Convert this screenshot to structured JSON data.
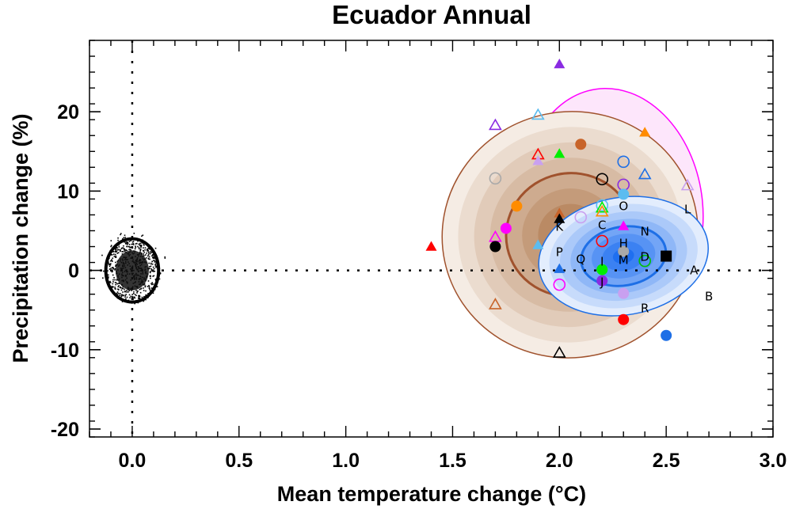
{
  "chart_data": {
    "type": "scatter",
    "title": "Ecuador Annual",
    "xlabel": "Mean temperature change (°C)",
    "ylabel": "Precipitation change (%)",
    "xlim": [
      -0.2,
      3.0
    ],
    "ylim": [
      -21,
      29
    ],
    "x_ticks": [
      {
        "value": 0.0,
        "label": "0.0"
      },
      {
        "value": 0.5,
        "label": "0.5"
      },
      {
        "value": 1.0,
        "label": "1.0"
      },
      {
        "value": 1.5,
        "label": "1.5"
      },
      {
        "value": 2.0,
        "label": "2.0"
      },
      {
        "value": 2.5,
        "label": "2.5"
      },
      {
        "value": 3.0,
        "label": "3.0"
      }
    ],
    "y_ticks": [
      {
        "value": -20,
        "label": "-20"
      },
      {
        "value": -10,
        "label": "-10"
      },
      {
        "value": 0,
        "label": "0"
      },
      {
        "value": 10,
        "label": "10"
      },
      {
        "value": 20,
        "label": "20"
      }
    ],
    "reference_lines": {
      "x": 0,
      "y": 0,
      "style": "dotted"
    },
    "natural_variability_cloud": {
      "center": [
        0.0,
        0.0
      ],
      "x_radius": 0.13,
      "y_radius": 4.2
    },
    "distributions": [
      {
        "name": "brown-distribution",
        "center": [
          2.05,
          4.5
        ],
        "x_radius": 0.6,
        "y_radius": 15.5,
        "color": "#a0522d",
        "fill_light": "#f5ece4",
        "fill_dark": "#b07a4f"
      },
      {
        "name": "magenta-distribution",
        "center": [
          2.25,
          8.0
        ],
        "x_radius": 0.42,
        "y_radius": 15.0,
        "color": "#ff00ff",
        "fill_light": "#fde6fb",
        "fill_dark": "#f8b8f2"
      },
      {
        "name": "blue-distribution",
        "center": [
          2.3,
          1.8
        ],
        "x_radius": 0.4,
        "y_radius": 7.4,
        "color": "#1e6fe6",
        "fill_light": "#e3edfd",
        "fill_dark": "#1f6ff0"
      }
    ],
    "points": [
      {
        "x": 1.4,
        "y": 3.0,
        "marker": "triangle",
        "filled": true,
        "color": "#ff0000"
      },
      {
        "x": 2.0,
        "y": 26.0,
        "marker": "triangle",
        "filled": true,
        "color": "#8a2be2"
      },
      {
        "x": 2.4,
        "y": 17.4,
        "marker": "triangle",
        "filled": true,
        "color": "#ff8c00"
      },
      {
        "x": 1.7,
        "y": 18.3,
        "marker": "triangle",
        "filled": false,
        "color": "#8a2be2"
      },
      {
        "x": 1.9,
        "y": 19.6,
        "marker": "triangle",
        "filled": false,
        "color": "#5bbcf0"
      },
      {
        "x": 1.9,
        "y": 14.6,
        "marker": "triangle",
        "filled": false,
        "color": "#ff0000"
      },
      {
        "x": 1.9,
        "y": 13.8,
        "marker": "triangle",
        "filled": true,
        "color": "#c9a0f0"
      },
      {
        "x": 2.0,
        "y": 14.7,
        "marker": "triangle",
        "filled": true,
        "color": "#00ee00"
      },
      {
        "x": 2.1,
        "y": 15.9,
        "marker": "circle",
        "filled": true,
        "color": "#c8642a"
      },
      {
        "x": 1.7,
        "y": 11.6,
        "marker": "circle",
        "filled": false,
        "color": "#a9a9a9"
      },
      {
        "x": 2.2,
        "y": 11.5,
        "marker": "circle",
        "filled": false,
        "color": "#000000"
      },
      {
        "x": 2.3,
        "y": 13.7,
        "marker": "circle",
        "filled": false,
        "color": "#1e6fe6"
      },
      {
        "x": 2.4,
        "y": 12.1,
        "marker": "triangle",
        "filled": false,
        "color": "#1e6fe6"
      },
      {
        "x": 2.3,
        "y": 10.8,
        "marker": "circle",
        "filled": false,
        "color": "#8a2be2"
      },
      {
        "x": 2.3,
        "y": 9.6,
        "marker": "circle",
        "filled": true,
        "color": "#5bbcf0"
      },
      {
        "x": 2.6,
        "y": 10.7,
        "marker": "triangle",
        "filled": false,
        "color": "#c9a0f0"
      },
      {
        "x": 1.8,
        "y": 8.1,
        "marker": "circle",
        "filled": true,
        "color": "#ff8c00"
      },
      {
        "x": 2.0,
        "y": 7.2,
        "marker": "triangle",
        "filled": true,
        "color": "#c8642a"
      },
      {
        "x": 2.0,
        "y": 6.5,
        "marker": "triangle",
        "filled": true,
        "color": "#000000"
      },
      {
        "x": 2.1,
        "y": 6.7,
        "marker": "circle",
        "filled": false,
        "color": "#c9a0f0"
      },
      {
        "x": 2.2,
        "y": 8.2,
        "marker": "circle",
        "filled": false,
        "color": "#5bbcf0"
      },
      {
        "x": 2.2,
        "y": 7.9,
        "marker": "triangle",
        "filled": false,
        "color": "#00ee00"
      },
      {
        "x": 2.2,
        "y": 7.4,
        "marker": "triangle",
        "filled": false,
        "color": "#ff8c00"
      },
      {
        "x": 1.75,
        "y": 5.3,
        "marker": "circle",
        "filled": true,
        "color": "#ff00ff"
      },
      {
        "x": 1.7,
        "y": 4.2,
        "marker": "triangle",
        "filled": false,
        "color": "#ff00ff"
      },
      {
        "x": 1.7,
        "y": 3.0,
        "marker": "circle",
        "filled": true,
        "color": "#000000"
      },
      {
        "x": 1.9,
        "y": 3.2,
        "marker": "triangle",
        "filled": true,
        "color": "#5bbcf0"
      },
      {
        "x": 2.3,
        "y": 5.6,
        "marker": "triangle",
        "filled": true,
        "color": "#ff00ff"
      },
      {
        "x": 2.2,
        "y": 3.7,
        "marker": "circle",
        "filled": false,
        "color": "#ff0000"
      },
      {
        "x": 2.3,
        "y": 2.4,
        "marker": "circle",
        "filled": true,
        "color": "#a9a9a9"
      },
      {
        "x": 2.5,
        "y": 1.8,
        "marker": "square",
        "filled": true,
        "color": "#000000"
      },
      {
        "x": 2.4,
        "y": 1.2,
        "marker": "circle",
        "filled": false,
        "color": "#00c000"
      },
      {
        "x": 2.0,
        "y": 0.2,
        "marker": "triangle",
        "filled": true,
        "color": "#1e6fe6"
      },
      {
        "x": 2.2,
        "y": 0.1,
        "marker": "circle",
        "filled": true,
        "color": "#00ee00"
      },
      {
        "x": 2.2,
        "y": -1.3,
        "marker": "circle",
        "filled": true,
        "color": "#8a2be2"
      },
      {
        "x": 2.0,
        "y": -1.8,
        "marker": "circle",
        "filled": false,
        "color": "#ff00ff"
      },
      {
        "x": 2.3,
        "y": -2.9,
        "marker": "circle",
        "filled": true,
        "color": "#c9a0f0"
      },
      {
        "x": 1.7,
        "y": -4.3,
        "marker": "triangle",
        "filled": false,
        "color": "#c8642a"
      },
      {
        "x": 2.3,
        "y": -6.2,
        "marker": "circle",
        "filled": true,
        "color": "#ff0000"
      },
      {
        "x": 2.5,
        "y": -8.2,
        "marker": "circle",
        "filled": true,
        "color": "#1e6fe6"
      },
      {
        "x": 2.0,
        "y": -10.4,
        "marker": "triangle",
        "filled": false,
        "color": "#000000"
      }
    ],
    "letter_labels": [
      {
        "text": "K",
        "x": 2.0,
        "y": 5.0
      },
      {
        "text": "P",
        "x": 2.0,
        "y": 1.8
      },
      {
        "text": "Q",
        "x": 2.1,
        "y": 0.9
      },
      {
        "text": "C",
        "x": 2.2,
        "y": 5.2
      },
      {
        "text": "O",
        "x": 2.3,
        "y": 7.6
      },
      {
        "text": "N",
        "x": 2.4,
        "y": 4.4
      },
      {
        "text": "M",
        "x": 2.3,
        "y": 0.8
      },
      {
        "text": "D",
        "x": 2.4,
        "y": 1.2
      },
      {
        "text": "L",
        "x": 2.6,
        "y": 7.2
      },
      {
        "text": "A",
        "x": 2.63,
        "y": -0.5
      },
      {
        "text": "B",
        "x": 2.7,
        "y": -3.8
      },
      {
        "text": "R",
        "x": 2.4,
        "y": -5.3
      },
      {
        "text": "I",
        "x": 2.2,
        "y": 0.6
      },
      {
        "text": "J",
        "x": 2.2,
        "y": -2.0
      },
      {
        "text": "H",
        "x": 2.3,
        "y": 2.9
      }
    ],
    "grid": false
  }
}
